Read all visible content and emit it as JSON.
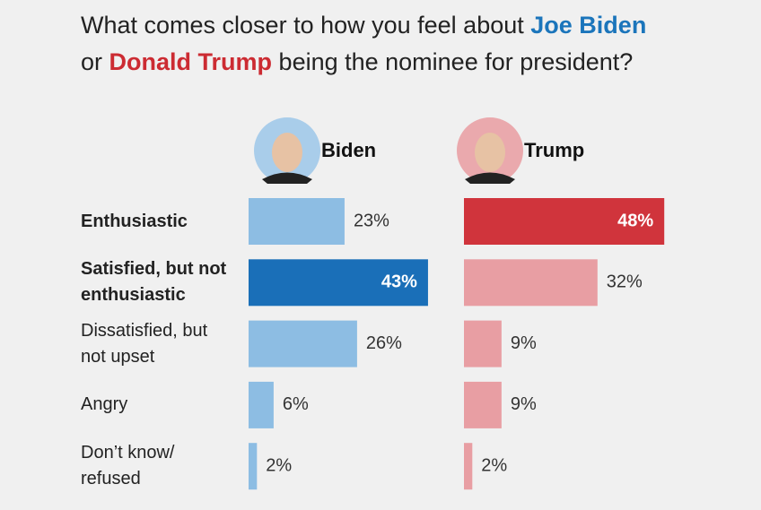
{
  "chart_data": {
    "type": "bar",
    "title_parts": [
      "What comes closer to how you feel about",
      "Joe Biden",
      "or",
      "Donald Trump",
      "being the nominee for president?"
    ],
    "categories": [
      "Enthusiastic",
      "Satisfied, but not enthusiastic",
      "Dissatisfied, but not upset",
      "Angry",
      "Don’t know/ refused"
    ],
    "bold_categories": [
      true,
      true,
      false,
      false,
      false
    ],
    "series": [
      {
        "name": "Biden",
        "color": "#8dbde3",
        "highlight": 1,
        "highlight_color": "#1a6fb8",
        "photo_color": "#a9cdea",
        "values": [
          23,
          43,
          26,
          6,
          2
        ],
        "value_labels": [
          "23%",
          "43%",
          "26%",
          "6%",
          "2%"
        ]
      },
      {
        "name": "Trump",
        "color": "#e89ea3",
        "highlight": 0,
        "highlight_color": "#d0343c",
        "photo_color": "#eaa9ad",
        "values": [
          48,
          32,
          9,
          9,
          2
        ],
        "value_labels": [
          "48%",
          "32%",
          "9%",
          "9%",
          "2%"
        ]
      }
    ]
  }
}
